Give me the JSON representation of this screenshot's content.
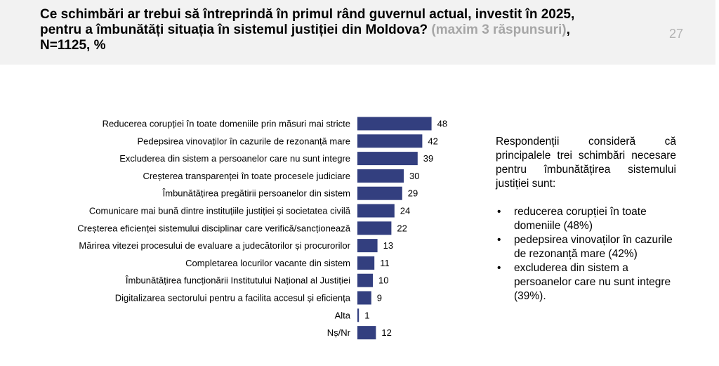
{
  "header": {
    "title_main": "Ce schimbări ar trebui să întreprindă în primul rând guvernul actual, investit în 2025, pentru a îmbunătăți situația în sistemul justiției din Moldova? ",
    "title_muted": "(maxim 3 răspunsuri)",
    "title_tail": ", N=1125, %",
    "page_number": "27"
  },
  "chart_data": {
    "type": "bar",
    "orientation": "horizontal",
    "categories": [
      "Reducerea corupției în toate domeniile prin măsuri mai stricte",
      "Pedepsirea vinovaților în cazurile de rezonanță mare",
      "Excluderea din sistem a persoanelor care nu sunt integre",
      "Creșterea transparenței în toate procesele judiciare",
      "Îmbunătățirea pregătirii persoanelor din sistem",
      "Comunicare mai bună dintre instituțiile justiției și societatea civilă",
      "Creșterea eficienței sistemului disciplinar care verifică/sancționează",
      "Mărirea vitezei procesului de evaluare a judecătorilor și procurorilor",
      "Completarea locurilor vacante din sistem",
      "Îmbunătățirea funcționării Institutului Național al Justiției",
      "Digitalizarea sectorului pentru a facilita accesul și eficiența",
      "Alta",
      "Nș/Nr"
    ],
    "values": [
      48,
      42,
      39,
      30,
      29,
      24,
      22,
      13,
      11,
      10,
      9,
      1,
      12
    ],
    "title": "",
    "xlabel": "",
    "ylabel": "",
    "xlim": [
      0,
      50
    ],
    "grid": false,
    "bar_color": "#333f7f",
    "data_labels": true
  },
  "summary": {
    "intro": "Respondenții consideră că principalele trei schimbări necesare pentru îmbunătățirea sistemului justiției sunt:",
    "points": [
      "reducerea corupției în toate domeniile (48%)",
      "pedepsirea vinovaților în cazurile de rezonanță mare (42%)",
      "excluderea din sistem a persoanelor care nu sunt integre (39%)."
    ]
  }
}
